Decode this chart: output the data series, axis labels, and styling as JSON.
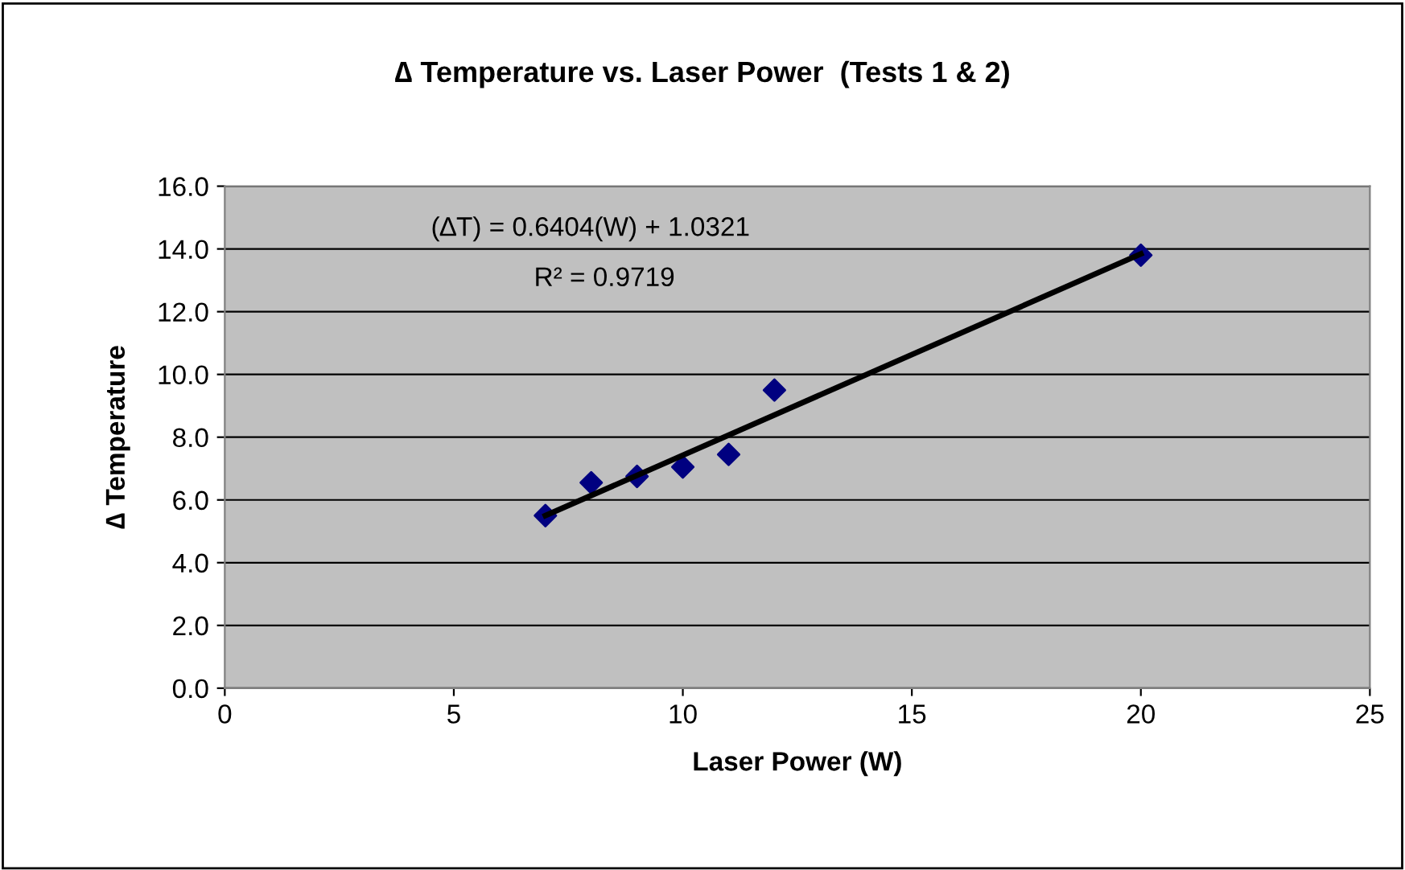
{
  "chart_data": {
    "type": "scatter",
    "title": "∆ Temperature vs. Laser Power  (Tests 1 & 2)",
    "xlabel": "Laser Power (W)",
    "ylabel": "∆ Temperature",
    "series": [
      {
        "color": "#000080",
        "marker": "diamond",
        "x": [
          7,
          8,
          9,
          10,
          11,
          12,
          20
        ],
        "values": [
          5.5,
          6.55,
          6.75,
          7.05,
          7.45,
          9.5,
          13.8
        ]
      },
      {
        "type": "line",
        "color": "#000000",
        "marker": "none",
        "line_style": "solid",
        "x": [
          7,
          20
        ],
        "values": [
          5.5,
          13.84
        ]
      }
    ],
    "annotations": [
      "(∆T) = 0.6404(W) + 1.0321",
      "R² = 0.9719"
    ],
    "xlim": [
      0,
      25
    ],
    "xticks": [
      0,
      5,
      10,
      15,
      20,
      25
    ],
    "ylim": [
      0,
      16
    ],
    "yticks": [
      {
        "value": 0,
        "label": "0.0"
      },
      {
        "value": 2,
        "label": "2.0"
      },
      {
        "value": 4,
        "label": "4.0"
      },
      {
        "value": 6,
        "label": "6.0"
      },
      {
        "value": 8,
        "label": "8.0"
      },
      {
        "value": 10,
        "label": "10.0"
      },
      {
        "value": 12,
        "label": "12.0"
      },
      {
        "value": 14,
        "label": "14.0"
      },
      {
        "value": 16,
        "label": "16.0"
      }
    ],
    "grid": "y",
    "legend": false
  }
}
